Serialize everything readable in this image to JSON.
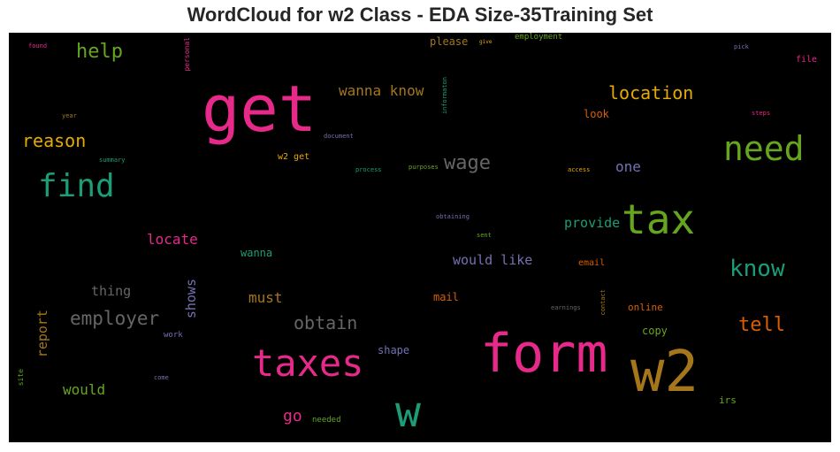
{
  "figure": {
    "title": "WordCloud for w2 Class - EDA Size-35Training Set"
  },
  "colors": {
    "pink": "#e7298a",
    "green": "#66a61e",
    "teal": "#1b9e77",
    "gold": "#e6ab02",
    "brown": "#a6761d",
    "purple": "#7570b3",
    "orange": "#d95f02",
    "gray": "#666666"
  },
  "chart_data": {
    "type": "wordcloud",
    "title": "WordCloud for w2 Class - EDA Size-35Training Set",
    "background": "#000000",
    "words": [
      {
        "text": "get",
        "weight": 72,
        "color": "pink"
      },
      {
        "text": "form",
        "weight": 60,
        "color": "pink"
      },
      {
        "text": "w2",
        "weight": 64,
        "color": "brown"
      },
      {
        "text": "w",
        "weight": 48,
        "color": "teal"
      },
      {
        "text": "tax",
        "weight": 46,
        "color": "green"
      },
      {
        "text": "taxes",
        "weight": 42,
        "color": "pink"
      },
      {
        "text": "need",
        "weight": 38,
        "color": "green"
      },
      {
        "text": "find",
        "weight": 36,
        "color": "teal"
      },
      {
        "text": "know",
        "weight": 26,
        "color": "teal"
      },
      {
        "text": "help",
        "weight": 22,
        "color": "green"
      },
      {
        "text": "wage",
        "weight": 22,
        "color": "gray"
      },
      {
        "text": "reason",
        "weight": 20,
        "color": "gold"
      },
      {
        "text": "location",
        "weight": 20,
        "color": "gold"
      },
      {
        "text": "employer",
        "weight": 21,
        "color": "gray"
      },
      {
        "text": "obtain",
        "weight": 20,
        "color": "gray"
      },
      {
        "text": "tell",
        "weight": 22,
        "color": "orange"
      },
      {
        "text": "wanna know",
        "weight": 16,
        "color": "brown"
      },
      {
        "text": "one",
        "weight": 16,
        "color": "purple"
      },
      {
        "text": "locate",
        "weight": 16,
        "color": "pink"
      },
      {
        "text": "provide",
        "weight": 15,
        "color": "teal"
      },
      {
        "text": "would like",
        "weight": 15,
        "color": "purple"
      },
      {
        "text": "must",
        "weight": 16,
        "color": "brown"
      },
      {
        "text": "thing",
        "weight": 15,
        "color": "gray"
      },
      {
        "text": "shows",
        "weight": 15,
        "color": "purple"
      },
      {
        "text": "report",
        "weight": 15,
        "color": "brown"
      },
      {
        "text": "would",
        "weight": 16,
        "color": "green"
      },
      {
        "text": "go",
        "weight": 18,
        "color": "pink"
      },
      {
        "text": "wanna",
        "weight": 12,
        "color": "teal"
      },
      {
        "text": "shape",
        "weight": 12,
        "color": "purple"
      },
      {
        "text": "mail",
        "weight": 12,
        "color": "orange"
      },
      {
        "text": "copy",
        "weight": 12,
        "color": "green"
      },
      {
        "text": "online",
        "weight": 11,
        "color": "orange"
      },
      {
        "text": "look",
        "weight": 12,
        "color": "orange"
      },
      {
        "text": "please",
        "weight": 12,
        "color": "brown"
      },
      {
        "text": "email",
        "weight": 10,
        "color": "orange"
      },
      {
        "text": "irs",
        "weight": 11,
        "color": "green"
      },
      {
        "text": "w2 get",
        "weight": 10,
        "color": "gold"
      },
      {
        "text": "file",
        "weight": 10,
        "color": "pink"
      },
      {
        "text": "employment",
        "weight": 9,
        "color": "green"
      },
      {
        "text": "work",
        "weight": 9,
        "color": "purple"
      },
      {
        "text": "needed",
        "weight": 9,
        "color": "green"
      },
      {
        "text": "personal",
        "weight": 8,
        "color": "pink"
      },
      {
        "text": "site",
        "weight": 8,
        "color": "green"
      },
      {
        "text": "contact",
        "weight": 7,
        "color": "brown"
      },
      {
        "text": "informaton",
        "weight": 7,
        "color": "teal"
      },
      {
        "text": "document",
        "weight": 7,
        "color": "purple"
      },
      {
        "text": "found",
        "weight": 7,
        "color": "pink"
      },
      {
        "text": "give",
        "weight": 6,
        "color": "gold"
      },
      {
        "text": "pick",
        "weight": 7,
        "color": "purple"
      },
      {
        "text": "steps",
        "weight": 7,
        "color": "pink"
      },
      {
        "text": "year",
        "weight": 7,
        "color": "brown"
      },
      {
        "text": "summary",
        "weight": 7,
        "color": "teal"
      },
      {
        "text": "process",
        "weight": 7,
        "color": "teal"
      },
      {
        "text": "purposes",
        "weight": 7,
        "color": "green"
      },
      {
        "text": "access",
        "weight": 7,
        "color": "gold"
      },
      {
        "text": "obtaining",
        "weight": 7,
        "color": "purple"
      },
      {
        "text": "sent",
        "weight": 7,
        "color": "green"
      },
      {
        "text": "earnings",
        "weight": 7,
        "color": "gray"
      },
      {
        "text": "come",
        "weight": 7,
        "color": "purple"
      }
    ]
  }
}
